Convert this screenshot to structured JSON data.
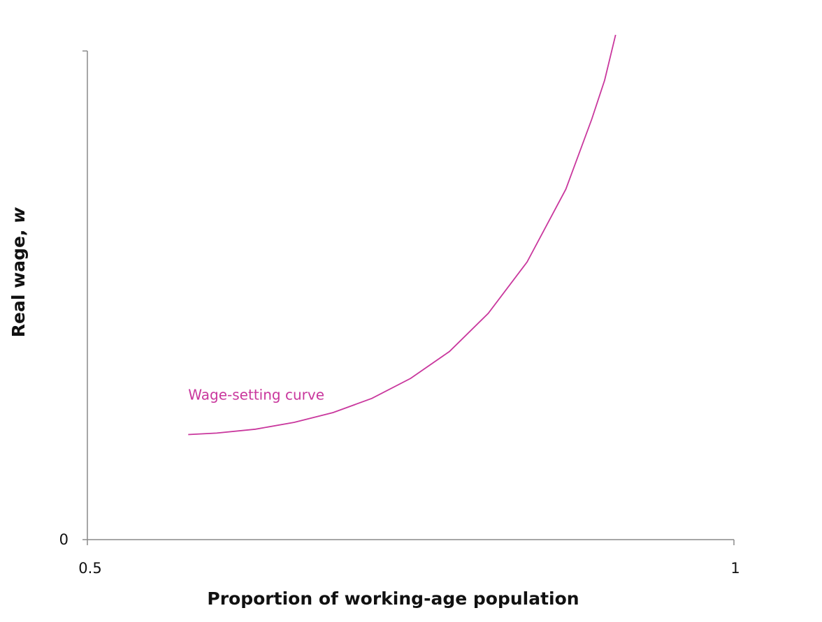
{
  "chart_data": {
    "type": "line",
    "title": "",
    "xlabel": "Proportion of working-age population",
    "ylabel_main": "Real wage, ",
    "ylabel_var": "w",
    "xlim": [
      0.5,
      1
    ],
    "ylim": [
      0,
      1
    ],
    "x_tick_labels": [
      "0.5",
      "1"
    ],
    "y_tick_labels": [
      "0"
    ],
    "grid": false,
    "series": [
      {
        "name": "Wage-setting curve",
        "color": "#c9379d",
        "label_position": "above left end of curve",
        "points": [
          [
            0.578,
            0.215
          ],
          [
            0.6,
            0.218
          ],
          [
            0.63,
            0.226
          ],
          [
            0.66,
            0.24
          ],
          [
            0.69,
            0.26
          ],
          [
            0.72,
            0.289
          ],
          [
            0.75,
            0.33
          ],
          [
            0.78,
            0.385
          ],
          [
            0.81,
            0.463
          ],
          [
            0.84,
            0.568
          ],
          [
            0.87,
            0.717
          ],
          [
            0.89,
            0.86
          ],
          [
            0.9,
            0.94
          ],
          [
            0.9085,
            1.033
          ]
        ]
      }
    ]
  }
}
